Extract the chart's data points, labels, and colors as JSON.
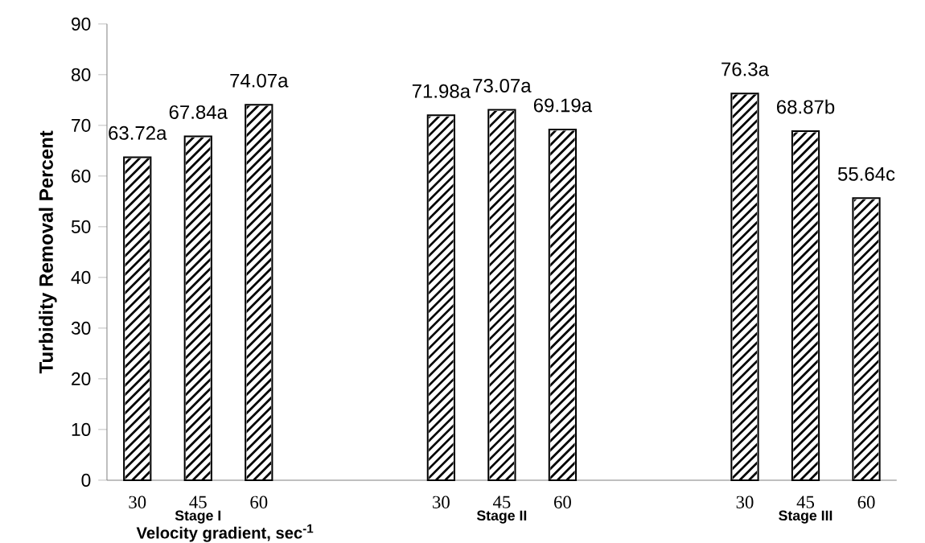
{
  "chart_data": {
    "type": "bar",
    "xlabel": "Velocity gradient,  sec$^{-1}$",
    "ylabel": "Turbidity Removal Percent",
    "categories": [
      "30",
      "45",
      "60",
      null,
      null,
      "30",
      "45",
      "60",
      null,
      null,
      "30",
      "45",
      "60"
    ],
    "values": [
      63.72,
      67.84,
      74.07,
      null,
      null,
      71.98,
      73.07,
      69.19,
      null,
      null,
      76.3,
      68.87,
      55.64
    ],
    "value_labels": [
      "63.72a",
      "67.84a",
      "74.07a",
      null,
      null,
      "71.98a",
      "73.07a",
      "69.19a",
      null,
      null,
      "76.3a",
      "68.87b",
      "55.64c"
    ],
    "color": "#000000",
    "annotations": [
      "Stage I",
      "Stage II",
      "Stage III"
    ],
    "ylim": [
      0,
      90
    ],
    "yticks": [
      0,
      10,
      20,
      30,
      40,
      50,
      60,
      70,
      80,
      90
    ],
    "grid": false,
    "legend": false
  }
}
